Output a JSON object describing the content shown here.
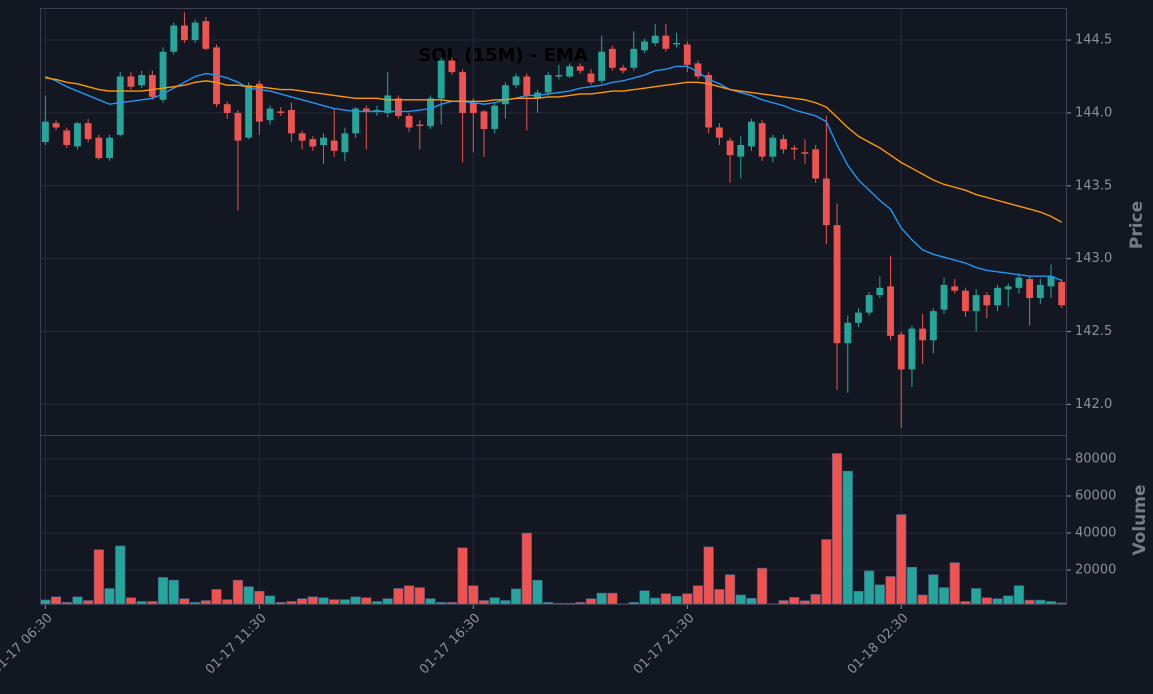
{
  "chart_data": [
    {
      "type": "candlestick",
      "title": "SOL (15M) - EMA",
      "ylabel": "Price",
      "categories": [
        "01-17 06:30",
        null,
        null,
        null,
        null,
        null,
        null,
        null,
        null,
        null,
        null,
        null,
        null,
        null,
        null,
        null,
        null,
        null,
        null,
        null,
        "01-17 11:30",
        null,
        null,
        null,
        null,
        null,
        null,
        null,
        null,
        null,
        null,
        null,
        null,
        null,
        null,
        null,
        null,
        null,
        null,
        null,
        "01-17 16:30",
        null,
        null,
        null,
        null,
        null,
        null,
        null,
        null,
        null,
        null,
        null,
        null,
        null,
        null,
        null,
        null,
        null,
        null,
        null,
        "01-17 21:30",
        null,
        null,
        null,
        null,
        null,
        null,
        null,
        null,
        null,
        null,
        null,
        null,
        null,
        null,
        null,
        null,
        null,
        null,
        null,
        "01-18 02:30",
        null,
        null,
        null,
        null,
        null,
        null,
        null,
        null,
        null,
        null,
        null,
        null,
        null,
        null,
        null
      ],
      "open": [
        143.8,
        143.93,
        143.88,
        143.77,
        143.93,
        143.83,
        143.69,
        143.85,
        144.25,
        144.19,
        144.26,
        144.09,
        144.42,
        144.6,
        144.5,
        144.63,
        144.45,
        144.06,
        144.0,
        143.83,
        144.2,
        143.95,
        144.01,
        144.02,
        143.86,
        143.82,
        143.78,
        143.81,
        143.73,
        143.86,
        144.03,
        144.01,
        144.0,
        144.1,
        143.98,
        143.92,
        143.91,
        144.1,
        144.36,
        144.28,
        144.07,
        144.01,
        143.89,
        144.06,
        144.19,
        144.25,
        144.1,
        144.14,
        144.25,
        144.25,
        144.32,
        144.27,
        144.22,
        144.44,
        144.31,
        144.31,
        144.43,
        144.48,
        144.53,
        144.47,
        144.47,
        144.34,
        144.26,
        143.9,
        143.81,
        143.7,
        143.77,
        143.93,
        143.7,
        143.82,
        143.76,
        143.73,
        143.75,
        143.55,
        143.23,
        142.42,
        142.56,
        142.63,
        142.75,
        142.81,
        142.48,
        142.24,
        142.52,
        142.44,
        142.65,
        142.81,
        142.78,
        142.64,
        142.75,
        142.68,
        142.79,
        142.8,
        142.86,
        142.73,
        142.81,
        142.84
      ],
      "high": [
        144.12,
        143.95,
        143.9,
        143.94,
        143.96,
        143.85,
        143.85,
        144.28,
        144.28,
        144.29,
        144.29,
        144.45,
        144.62,
        144.69,
        144.64,
        144.66,
        144.47,
        144.08,
        144.02,
        144.21,
        144.22,
        144.05,
        144.04,
        144.07,
        143.88,
        143.84,
        143.86,
        144.03,
        143.9,
        144.04,
        144.05,
        144.05,
        144.28,
        144.12,
        144.0,
        143.95,
        144.12,
        144.38,
        144.38,
        144.3,
        144.1,
        144.02,
        144.07,
        144.21,
        144.27,
        144.27,
        144.16,
        144.28,
        144.33,
        144.34,
        144.34,
        144.3,
        144.53,
        144.46,
        144.33,
        144.56,
        144.51,
        144.61,
        144.61,
        144.55,
        144.49,
        144.36,
        144.28,
        143.93,
        143.83,
        143.84,
        143.96,
        143.95,
        143.85,
        143.85,
        143.78,
        143.82,
        143.78,
        143.98,
        143.38,
        142.61,
        142.66,
        142.77,
        142.88,
        143.02,
        142.5,
        142.54,
        142.62,
        142.66,
        142.87,
        142.86,
        142.8,
        142.79,
        142.77,
        142.82,
        142.83,
        142.9,
        142.88,
        142.86,
        142.96,
        142.86
      ],
      "low": [
        143.78,
        143.88,
        143.76,
        143.75,
        143.8,
        143.68,
        143.67,
        143.84,
        144.16,
        144.17,
        144.09,
        144.07,
        144.4,
        144.48,
        144.48,
        144.43,
        144.04,
        143.96,
        143.33,
        143.82,
        143.85,
        143.92,
        143.98,
        143.8,
        143.75,
        143.74,
        143.65,
        143.7,
        143.67,
        143.83,
        143.75,
        143.98,
        143.97,
        143.96,
        143.87,
        143.75,
        143.89,
        143.92,
        144.26,
        143.66,
        143.73,
        143.7,
        143.86,
        143.96,
        144.17,
        143.88,
        144.0,
        144.12,
        144.23,
        144.24,
        144.27,
        144.19,
        144.2,
        144.29,
        144.27,
        144.29,
        144.41,
        144.46,
        144.42,
        144.45,
        144.28,
        144.23,
        143.86,
        143.78,
        143.52,
        143.55,
        143.74,
        143.67,
        143.66,
        143.72,
        143.68,
        143.65,
        143.52,
        143.1,
        142.1,
        142.08,
        142.53,
        142.61,
        142.73,
        142.44,
        141.84,
        142.12,
        142.28,
        142.35,
        142.62,
        142.76,
        142.6,
        142.5,
        142.59,
        142.64,
        142.67,
        142.76,
        142.54,
        142.69,
        142.73,
        142.66
      ],
      "close": [
        143.94,
        143.9,
        143.78,
        143.93,
        143.82,
        143.69,
        143.83,
        144.25,
        144.18,
        144.26,
        144.11,
        144.42,
        144.6,
        144.5,
        144.62,
        144.44,
        144.06,
        144.0,
        143.81,
        144.19,
        143.94,
        144.03,
        144.0,
        143.86,
        143.81,
        143.77,
        143.83,
        143.74,
        143.86,
        144.03,
        144.01,
        144.02,
        144.12,
        143.98,
        143.9,
        143.91,
        144.1,
        144.36,
        144.28,
        144.0,
        144.0,
        143.89,
        144.05,
        144.19,
        144.25,
        144.12,
        144.14,
        144.26,
        144.26,
        144.32,
        144.29,
        144.21,
        144.42,
        144.31,
        144.29,
        144.44,
        144.49,
        144.53,
        144.44,
        144.48,
        144.33,
        144.25,
        143.9,
        143.83,
        143.71,
        143.78,
        143.94,
        143.7,
        143.83,
        143.75,
        143.75,
        143.72,
        143.55,
        143.23,
        142.42,
        142.56,
        142.63,
        142.75,
        142.8,
        142.47,
        142.24,
        142.52,
        142.44,
        142.64,
        142.82,
        142.78,
        142.64,
        142.75,
        142.68,
        142.8,
        142.81,
        142.87,
        142.73,
        142.82,
        142.88,
        142.68
      ],
      "up_color": "#26a69a",
      "down_color": "#ef5350",
      "lines": [
        {
          "color": "#2196f3",
          "values": [
            144.25,
            144.22,
            144.18,
            144.15,
            144.12,
            144.09,
            144.06,
            144.07,
            144.08,
            144.09,
            144.1,
            144.13,
            144.17,
            144.21,
            144.25,
            144.27,
            144.26,
            144.24,
            144.21,
            144.17,
            144.16,
            144.15,
            144.13,
            144.11,
            144.09,
            144.07,
            144.05,
            144.03,
            144.02,
            144.01,
            144.01,
            144.01,
            144.01,
            144.01,
            144.01,
            144.02,
            144.03,
            144.06,
            144.08,
            144.08,
            144.07,
            144.06,
            144.07,
            144.09,
            144.1,
            144.12,
            144.12,
            144.13,
            144.14,
            144.15,
            144.17,
            144.18,
            144.19,
            144.21,
            144.22,
            144.24,
            144.26,
            144.29,
            144.3,
            144.32,
            144.32,
            144.28,
            144.23,
            144.2,
            144.16,
            144.14,
            144.12,
            144.09,
            144.07,
            144.05,
            144.02,
            144.0,
            143.98,
            143.94,
            143.78,
            143.64,
            143.54,
            143.47,
            143.4,
            143.34,
            143.21,
            143.13,
            143.06,
            143.03,
            143.01,
            142.99,
            142.97,
            142.94,
            142.92,
            142.91,
            142.9,
            142.89,
            142.88,
            142.88,
            142.88,
            142.85
          ]
        },
        {
          "color": "#ff9800",
          "values": [
            144.24,
            144.23,
            144.21,
            144.2,
            144.18,
            144.16,
            144.15,
            144.15,
            144.15,
            144.15,
            144.16,
            144.17,
            144.18,
            144.19,
            144.21,
            144.22,
            144.21,
            144.19,
            144.19,
            144.18,
            144.18,
            144.17,
            144.16,
            144.16,
            144.15,
            144.14,
            144.13,
            144.12,
            144.11,
            144.1,
            144.1,
            144.1,
            144.09,
            144.09,
            144.09,
            144.09,
            144.09,
            144.09,
            144.08,
            144.08,
            144.08,
            144.08,
            144.09,
            144.09,
            144.1,
            144.1,
            144.1,
            144.11,
            144.11,
            144.12,
            144.13,
            144.13,
            144.14,
            144.15,
            144.15,
            144.16,
            144.17,
            144.18,
            144.19,
            144.2,
            144.21,
            144.21,
            144.2,
            144.18,
            144.16,
            144.15,
            144.14,
            144.13,
            144.12,
            144.11,
            144.1,
            144.09,
            144.07,
            144.04,
            143.97,
            143.9,
            143.84,
            143.8,
            143.76,
            143.71,
            143.66,
            143.62,
            143.58,
            143.54,
            143.51,
            143.49,
            143.47,
            143.44,
            143.42,
            143.4,
            143.38,
            143.36,
            143.34,
            143.32,
            143.29,
            143.25
          ]
        }
      ],
      "xlim": [
        -0.5,
        95.4
      ],
      "ylim": [
        141.79,
        144.72
      ],
      "yticks": [
        {
          "value": 142,
          "label": "142.0"
        },
        142.5,
        {
          "value": 143,
          "label": "143.0"
        },
        143.5,
        {
          "value": 144,
          "label": "144.0"
        },
        144.5
      ],
      "grid": true
    },
    {
      "type": "bar",
      "ylabel": "Volume",
      "values": [
        3800,
        5500,
        2500,
        5500,
        3500,
        31000,
        10000,
        33000,
        5000,
        3000,
        3000,
        16000,
        14500,
        4500,
        2500,
        3500,
        9500,
        4000,
        14500,
        11000,
        8500,
        6000,
        2500,
        3000,
        4500,
        5500,
        5000,
        4000,
        4000,
        5500,
        5000,
        3000,
        4500,
        10000,
        11500,
        10500,
        4500,
        2500,
        2500,
        32000,
        11500,
        3500,
        5000,
        3500,
        9800,
        40000,
        14500,
        2500,
        2000,
        2000,
        2500,
        4500,
        7500,
        7500,
        1700,
        2500,
        8800,
        4800,
        7200,
        5800,
        7200,
        11500,
        32500,
        9500,
        17500,
        6500,
        4700,
        21000,
        1700,
        3500,
        5200,
        3400,
        6800,
        36500,
        83000,
        73500,
        8500,
        19500,
        12000,
        16500,
        50000,
        21500,
        6500,
        17500,
        10500,
        24000,
        3000,
        10000,
        5000,
        4500,
        6000,
        11500,
        3700,
        3700,
        3000,
        2200
      ],
      "ylim": [
        1600,
        93000
      ],
      "yticks": [
        20000,
        40000,
        60000,
        80000
      ],
      "grid": true
    }
  ]
}
